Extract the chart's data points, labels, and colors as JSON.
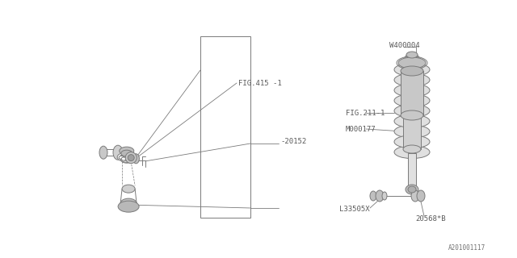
{
  "bg_color": "#ffffff",
  "line_color": "#7a7a7a",
  "text_color": "#5a5a5a",
  "fig_size": [
    6.4,
    3.2
  ],
  "dpi": 100,
  "labels": {
    "fig415": "FIG.415 -1",
    "fig211": "FIG.211-1",
    "m000177": "M000177",
    "w400004": "W400004",
    "l33505x": "L33505X",
    "p20152": "-20152",
    "p20568": "20568*B",
    "footer": "A201001117"
  }
}
